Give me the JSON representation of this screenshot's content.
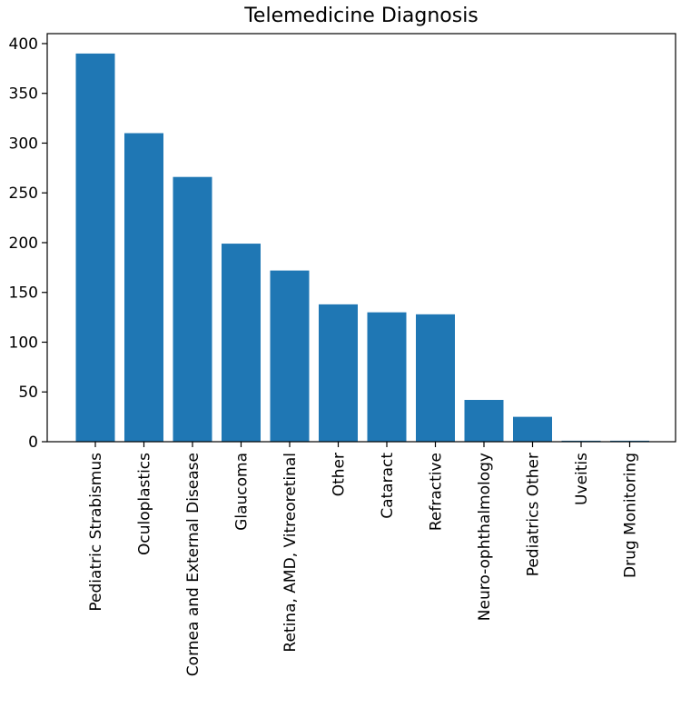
{
  "chart_data": {
    "type": "bar",
    "title": "Telemedicine Diagnosis",
    "xlabel": "",
    "ylabel": "",
    "categories": [
      "Pediatric Strabismus",
      "Oculoplastics",
      "Cornea and External Disease",
      "Glaucoma",
      "Retina, AMD, Vitreoretinal",
      "Other",
      "Cataract",
      "Refractive",
      "Neuro-ophthalmology",
      "Pediatrics Other",
      "Uveitis",
      "Drug Monitoring"
    ],
    "values": [
      390,
      310,
      266,
      199,
      172,
      138,
      130,
      128,
      42,
      25,
      1,
      1
    ],
    "ylim": [
      0,
      410
    ],
    "yticks": [
      0,
      50,
      100,
      150,
      200,
      250,
      300,
      350,
      400
    ],
    "ytick_labels": [
      "0",
      "50",
      "100",
      "150",
      "200",
      "250",
      "300",
      "350",
      "400"
    ],
    "grid": false,
    "bar_color": "#1f77b4"
  }
}
